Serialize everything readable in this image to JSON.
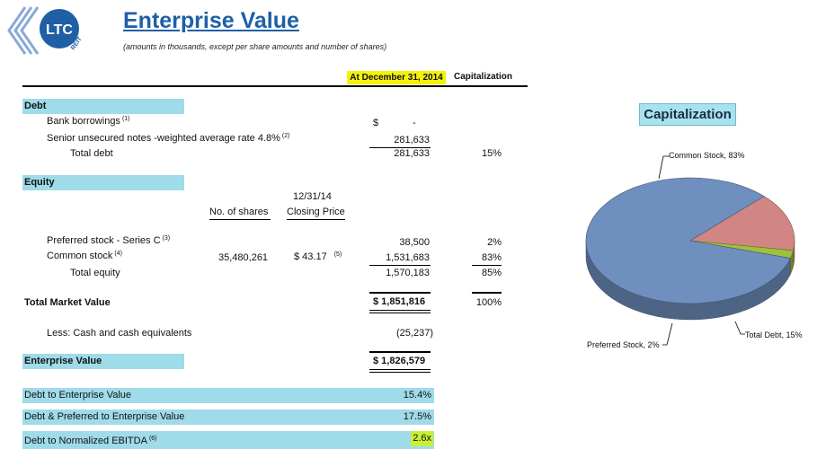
{
  "header": {
    "logo_text": "LTC",
    "logo_subtext": "REIT",
    "title": "Enterprise Value",
    "subtitle": "(amounts in thousands, except per share amounts and number of shares)",
    "col_date": "At December 31, 2014",
    "col_capitalization": "Capitalization"
  },
  "debt": {
    "heading": "Debt",
    "bank_label": "Bank borrowings",
    "bank_note": "(1)",
    "bank_currency": "$",
    "bank_value": "-",
    "senior_label": "Senior unsecured notes -weighted average rate 4.8%",
    "senior_note": "(2)",
    "senior_value": "281,633",
    "total_label": "Total debt",
    "total_value": "281,633",
    "total_pct": "15%"
  },
  "equity": {
    "heading": "Equity",
    "col_shares": "No. of shares",
    "col_price_line1": "12/31/14",
    "col_price_line2": "Closing Price",
    "preferred_label": "Preferred stock - Series C",
    "preferred_note": "(3)",
    "preferred_value": "38,500",
    "preferred_pct": "2%",
    "common_label": "Common stock",
    "common_note": "(4)",
    "common_shares": "35,480,261",
    "common_price": "$  43.17",
    "common_price_note": "(5)",
    "common_value": "1,531,683",
    "common_pct": "83%",
    "total_label": "Total equity",
    "total_value": "1,570,183",
    "total_pct": "85%"
  },
  "market": {
    "label": "Total Market Value",
    "value": "$ 1,851,816",
    "pct": "100%"
  },
  "cash": {
    "label": "Less:  Cash and cash equivalents",
    "value": "(25,237)"
  },
  "ev": {
    "label": "Enterprise Value",
    "value": "$ 1,826,579"
  },
  "ratios": [
    {
      "label": "Debt to Enterprise Value",
      "note": "",
      "value": "15.4%"
    },
    {
      "label": "Debt & Preferred to Enterprise Value",
      "note": "",
      "value": "17.5%"
    },
    {
      "label": "Debt to Normalized EBITDA",
      "note": "(6)",
      "value": "2.6x"
    }
  ],
  "chart_data": {
    "type": "pie",
    "title": "Capitalization",
    "slices": [
      {
        "label": "Common Stock",
        "value": 83,
        "color": "#6f8fbe"
      },
      {
        "label": "Total Debt",
        "value": 15,
        "color": "#d18683"
      },
      {
        "label": "Preferred Stock",
        "value": 2,
        "color": "#9fbf3f"
      }
    ],
    "labels": {
      "common": "Common Stock, 83%",
      "debt": "Total Debt, 15%",
      "preferred": "Preferred Stock, 2%"
    }
  },
  "colors": {
    "band": "#9fdbe8",
    "date_highlight": "#f5f20a",
    "ratio_highlight": "#c8f035",
    "title": "#1f5fa6"
  }
}
